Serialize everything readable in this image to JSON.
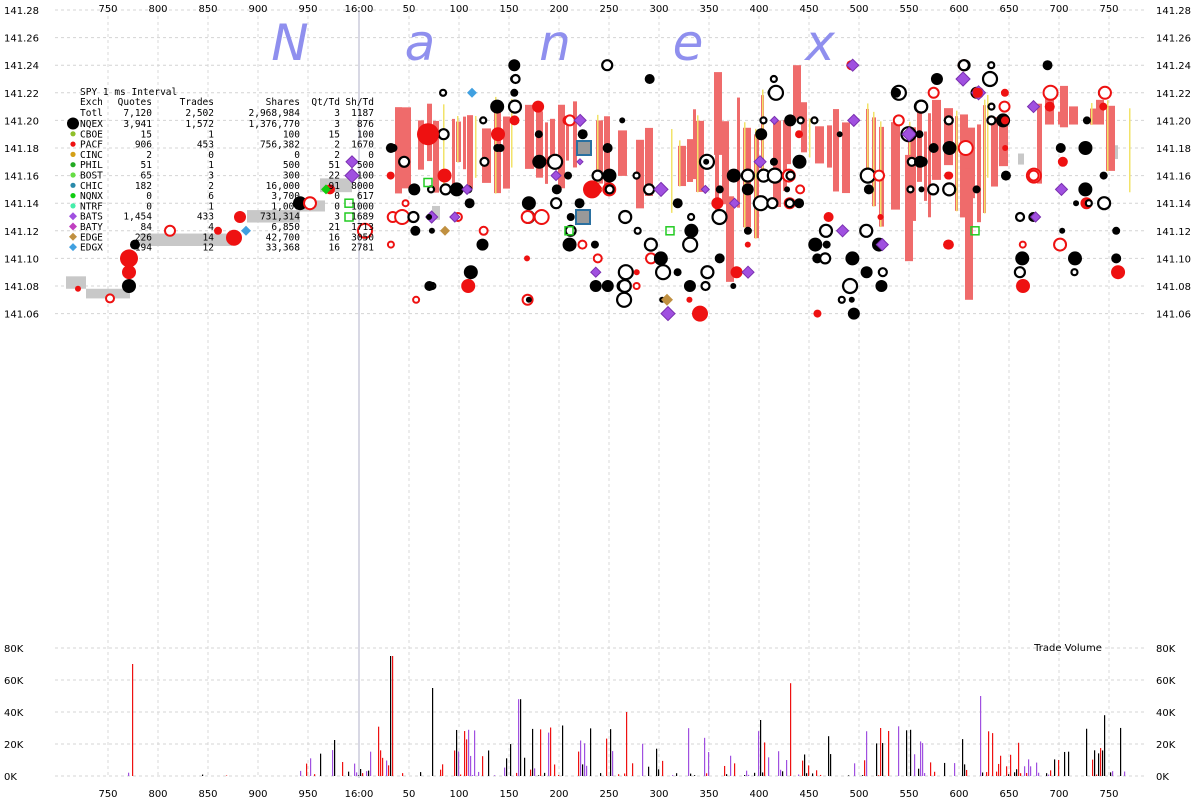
{
  "chart_data": [
    {
      "type": "scatter",
      "watermark": [
        "N",
        "a",
        "n",
        "e",
        "x"
      ],
      "x_ticks": [
        "750",
        "800",
        "850",
        "900",
        "950",
        "16:00",
        "50",
        "100",
        "150",
        "200",
        "250",
        "300",
        "350",
        "400",
        "450",
        "500",
        "550",
        "600",
        "650",
        "700",
        "750"
      ],
      "y_ticks": [
        "141.28",
        "141.26",
        "141.24",
        "141.22",
        "141.20",
        "141.18",
        "141.16",
        "141.14",
        "141.12",
        "141.10",
        "141.08",
        "141.06"
      ],
      "ylim": [
        141.05,
        141.28
      ],
      "colors": {
        "nbbo_band": "#ef6b6b",
        "gray_band": "#c8c8c8",
        "yellow": "#f2e36a",
        "NQEX": "#000000",
        "CBOE": "#8fbf2a",
        "PACF": "#ee1111",
        "CINC": "#d4a017",
        "PHIL": "#22aa22",
        "BOST": "#66dd44",
        "CHIC": "#2a8aaa",
        "NQNX": "#11cc11",
        "NTRF": "#44eeaa",
        "BATS": "#a050e0",
        "BATY": "#c040c0",
        "EDGE": "#c09040",
        "EDGX": "#40a0e0"
      },
      "table": {
        "title": "SPY 1 ms Interval",
        "headers": [
          "Exch",
          "Quotes",
          "Trades",
          "Shares",
          "Qt/Td",
          "Sh/Td"
        ],
        "total": [
          "Totl",
          "7,120",
          "2,502",
          "2,968,984",
          "3",
          "1187"
        ],
        "rows": [
          {
            "exch": "NQEX",
            "quotes": "3,941",
            "trades": "1,572",
            "shares": "1,376,770",
            "qt": "3",
            "sh": "876"
          },
          {
            "exch": "CBOE",
            "quotes": "15",
            "trades": "1",
            "shares": "100",
            "qt": "15",
            "sh": "100"
          },
          {
            "exch": "PACF",
            "quotes": "906",
            "trades": "453",
            "shares": "756,382",
            "qt": "2",
            "sh": "1670"
          },
          {
            "exch": "CINC",
            "quotes": "2",
            "trades": "0",
            "shares": "0",
            "qt": "2",
            "sh": "0"
          },
          {
            "exch": "PHIL",
            "quotes": "51",
            "trades": "1",
            "shares": "500",
            "qt": "51",
            "sh": "500"
          },
          {
            "exch": "BOST",
            "quotes": "65",
            "trades": "3",
            "shares": "300",
            "qt": "22",
            "sh": "100"
          },
          {
            "exch": "CHIC",
            "quotes": "182",
            "trades": "2",
            "shares": "16,000",
            "qt": "91",
            "sh": "8000"
          },
          {
            "exch": "NQNX",
            "quotes": "0",
            "trades": "6",
            "shares": "3,700",
            "qt": "0",
            "sh": "617"
          },
          {
            "exch": "NTRF",
            "quotes": "0",
            "trades": "1",
            "shares": "1,000",
            "qt": "0",
            "sh": "1000"
          },
          {
            "exch": "BATS",
            "quotes": "1,454",
            "trades": "433",
            "shares": "731,314",
            "qt": "3",
            "sh": "1689"
          },
          {
            "exch": "BATY",
            "quotes": "84",
            "trades": "4",
            "shares": "6,850",
            "qt": "21",
            "sh": "1713"
          },
          {
            "exch": "EDGE",
            "quotes": "226",
            "trades": "14",
            "shares": "42,700",
            "qt": "16",
            "sh": "3050"
          },
          {
            "exch": "EDGX",
            "quotes": "194",
            "trades": "12",
            "shares": "33,368",
            "qt": "16",
            "sh": "2781"
          }
        ]
      }
    },
    {
      "type": "bar",
      "title": "Trade Volume",
      "y_ticks": [
        "80K",
        "60K",
        "40K",
        "20K",
        "0K"
      ],
      "ylim": [
        0,
        80000
      ],
      "colors": {
        "red": "#ee1111",
        "black": "#000000",
        "purple": "#a050e0"
      }
    }
  ]
}
